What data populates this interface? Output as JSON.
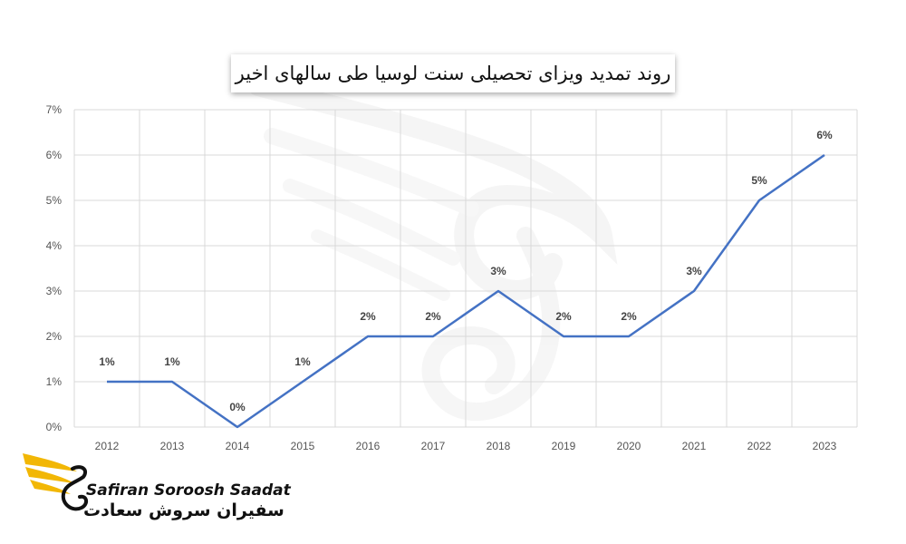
{
  "chart_data": {
    "type": "line",
    "title": "روند تمدید ویزای تحصیلی سنت لوسیا طی سالهای اخیر",
    "xlabel": "",
    "ylabel": "",
    "x": [
      "2012",
      "2013",
      "2014",
      "2015",
      "2016",
      "2017",
      "2018",
      "2019",
      "2020",
      "2021",
      "2022",
      "2023"
    ],
    "series": [
      {
        "values": [
          1,
          1,
          0,
          1,
          2,
          2,
          3,
          2,
          2,
          3,
          5,
          6
        ]
      }
    ],
    "data_labels": [
      "1%",
      "1%",
      "0%",
      "1%",
      "2%",
      "2%",
      "3%",
      "2%",
      "2%",
      "3%",
      "5%",
      "6%"
    ],
    "y_tick_labels": [
      "0%",
      "1%",
      "2%",
      "3%",
      "4%",
      "5%",
      "6%",
      "7%"
    ],
    "ylim": [
      0,
      7
    ],
    "grid": "horizontal and vertical",
    "line_color": "#4472C4",
    "grid_color": "#D9D9D9"
  },
  "brand": {
    "name_en": "Safiran Soroosh Saadat",
    "name_fa": "سفیران سروش سعادت",
    "accent_color": "#F2B705"
  }
}
